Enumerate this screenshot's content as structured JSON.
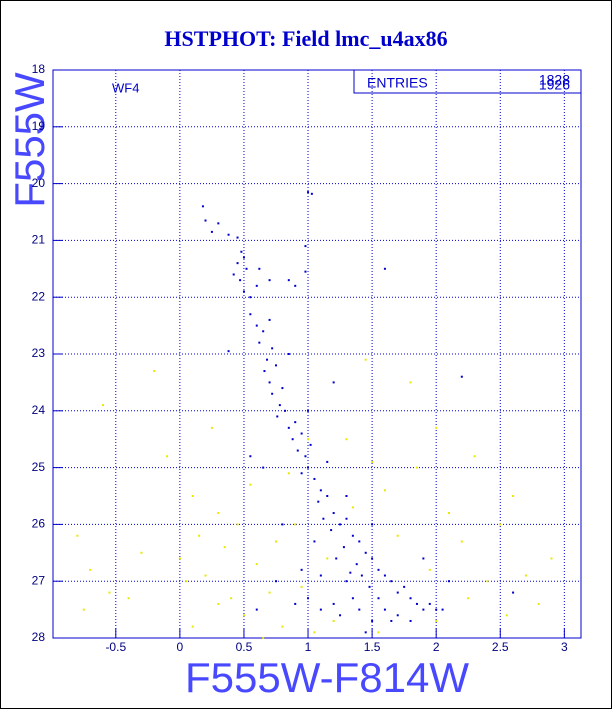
{
  "chart_data": {
    "type": "scatter",
    "title": "HSTPHOT: Field lmc_u4ax86",
    "x_label": "F555W-F814W",
    "y_label": "F555W",
    "annotation": "WF4",
    "stats": {
      "label": "ENTRIES",
      "values": [
        1828,
        1926
      ]
    },
    "xlim": [
      -0.99,
      3.13
    ],
    "ylim": [
      28,
      18
    ],
    "xticks": [
      -0.5,
      0,
      0.5,
      1,
      1.5,
      2,
      2.5,
      3
    ],
    "yticks": [
      18,
      19,
      20,
      21,
      22,
      23,
      24,
      25,
      26,
      27,
      28
    ],
    "grid": true,
    "series": [
      {
        "color": "#0000cc",
        "x": [
          0.18,
          0.2,
          0.3,
          0.25,
          0.38,
          0.45,
          1.0,
          1.03,
          0.98,
          0.45,
          0.48,
          0.5,
          0.42,
          0.47,
          0.52,
          0.5,
          0.55,
          0.6,
          0.62,
          0.7,
          0.85,
          0.9,
          0.98,
          1.6,
          0.55,
          0.6,
          0.62,
          0.65,
          0.7,
          0.72,
          0.68,
          0.38,
          0.66,
          0.7,
          0.75,
          0.72,
          0.78,
          0.8,
          0.82,
          0.76,
          0.85,
          0.9,
          0.88,
          0.92,
          0.95,
          0.98,
          1.0,
          0.95,
          1.05,
          1.02,
          1.1,
          1.08,
          1.15,
          1.2,
          1.12,
          1.25,
          1.3,
          1.18,
          1.35,
          1.28,
          1.4,
          1.45,
          1.22,
          1.38,
          1.5,
          1.55,
          1.42,
          1.6,
          1.65,
          1.3,
          1.48,
          1.7,
          1.75,
          1.55,
          1.35,
          1.8,
          1.85,
          1.6,
          1.4,
          1.2,
          1.9,
          1.95,
          2.0,
          1.7,
          1.5,
          1.1,
          1.0,
          0.9,
          1.25,
          1.65,
          1.8,
          2.05,
          2.6,
          2.2,
          1.0,
          1.3,
          1.5,
          0.8,
          0.65,
          1.1,
          0.95,
          1.2,
          0.55,
          1.45,
          1.9,
          2.1,
          1.15,
          0.85,
          1.05,
          1.33,
          0.75,
          0.6
        ],
        "values": [
          20.4,
          20.65,
          20.7,
          20.85,
          20.9,
          20.95,
          20.15,
          20.18,
          21.1,
          21.4,
          21.2,
          21.3,
          21.6,
          21.7,
          21.5,
          21.9,
          22.0,
          21.8,
          21.5,
          21.7,
          21.7,
          21.8,
          21.55,
          21.5,
          22.3,
          22.5,
          22.8,
          22.6,
          22.4,
          22.9,
          23.1,
          22.95,
          23.3,
          23.5,
          23.2,
          23.7,
          23.9,
          23.6,
          24.0,
          24.1,
          24.3,
          24.2,
          24.5,
          24.7,
          24.4,
          24.8,
          25.0,
          25.1,
          25.2,
          24.6,
          25.4,
          25.6,
          25.5,
          25.8,
          25.9,
          26.0,
          25.9,
          26.1,
          26.2,
          26.4,
          26.3,
          26.5,
          26.6,
          26.7,
          26.6,
          26.8,
          26.9,
          26.9,
          27.0,
          27.0,
          27.1,
          27.2,
          27.1,
          27.3,
          27.3,
          27.3,
          27.4,
          27.5,
          27.5,
          27.4,
          27.5,
          27.4,
          27.5,
          27.6,
          27.7,
          27.5,
          27.3,
          27.4,
          27.6,
          27.7,
          27.7,
          27.5,
          27.2,
          23.4,
          24.0,
          25.5,
          26.0,
          26.0,
          25.0,
          26.9,
          26.8,
          23.5,
          24.8,
          27.9,
          26.6,
          27.0,
          24.9,
          23.0,
          26.3,
          26.85,
          27.0,
          27.5
        ]
      },
      {
        "color": "#e8e800",
        "x": [
          -0.75,
          -0.7,
          -0.55,
          -0.4,
          -0.3,
          -0.2,
          -0.1,
          0.0,
          0.05,
          0.1,
          0.15,
          0.2,
          0.25,
          0.3,
          0.35,
          0.4,
          0.45,
          0.5,
          0.55,
          0.6,
          0.7,
          0.75,
          0.8,
          0.9,
          0.95,
          1.05,
          1.15,
          1.2,
          1.3,
          1.35,
          1.5,
          1.55,
          1.6,
          1.7,
          1.8,
          1.85,
          1.95,
          2.0,
          2.1,
          2.2,
          2.25,
          2.3,
          2.4,
          2.5,
          2.55,
          2.6,
          2.7,
          2.8,
          2.9,
          -0.6,
          0.1,
          0.3,
          0.65,
          1.0,
          1.45,
          -0.8,
          0.85,
          2.0
        ],
        "values": [
          27.5,
          26.8,
          27.2,
          27.3,
          26.5,
          23.3,
          24.8,
          26.6,
          27.0,
          25.5,
          26.2,
          26.9,
          24.3,
          25.8,
          26.4,
          27.3,
          26.0,
          27.6,
          25.3,
          26.7,
          27.2,
          26.3,
          27.8,
          26.0,
          27.1,
          27.9,
          26.6,
          27.7,
          24.5,
          25.7,
          24.9,
          27.9,
          25.4,
          26.2,
          23.5,
          25.0,
          26.8,
          27.7,
          25.8,
          26.3,
          27.3,
          24.8,
          27.0,
          26.0,
          27.6,
          25.5,
          26.9,
          27.4,
          26.6,
          23.9,
          27.8,
          27.4,
          28.0,
          24.5,
          23.1,
          26.2,
          25.1,
          24.3
        ]
      }
    ]
  }
}
